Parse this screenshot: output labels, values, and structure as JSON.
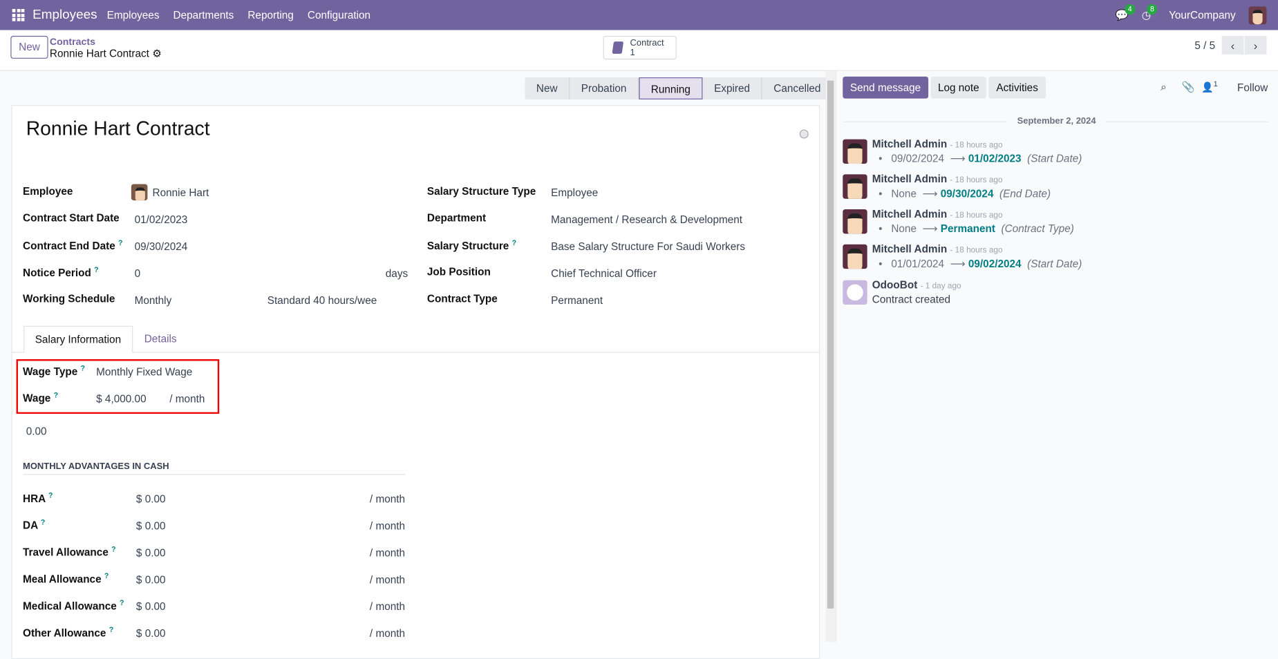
{
  "nav": {
    "app": "Employees",
    "menus": [
      "Employees",
      "Departments",
      "Reporting",
      "Configuration"
    ],
    "messages_count": "4",
    "activities_count": "8",
    "company": "YourCompany"
  },
  "control": {
    "new_label": "New",
    "breadcrumb_parent": "Contracts",
    "breadcrumb_current": "Ronnie Hart Contract",
    "smart_label": "Contract",
    "smart_count": "1",
    "pager": "5 / 5"
  },
  "statusbar": {
    "stages": [
      "New",
      "Probation",
      "Running",
      "Expired",
      "Cancelled"
    ],
    "active": "Running"
  },
  "form": {
    "title": "Ronnie Hart Contract",
    "left_fields": [
      {
        "label": "Employee",
        "value": "Ronnie Hart",
        "help": ""
      },
      {
        "label": "Contract Start Date",
        "value": "01/02/2023",
        "help": ""
      },
      {
        "label": "Contract End Date",
        "value": "09/30/2024",
        "help": "?"
      },
      {
        "label": "Notice Period",
        "value": "0",
        "help": "?",
        "suffix": "days"
      },
      {
        "label": "Working Schedule",
        "value": "Monthly",
        "help": "",
        "extra": "Standard 40 hours/wee"
      }
    ],
    "right_fields": [
      {
        "label": "Salary Structure Type",
        "value": "Employee",
        "help": ""
      },
      {
        "label": "Department",
        "value": "Management / Research & Development",
        "help": ""
      },
      {
        "label": "Salary Structure",
        "value": "Base Salary Structure For Saudi Workers",
        "help": "?"
      },
      {
        "label": "Job Position",
        "value": "Chief Technical Officer",
        "help": ""
      },
      {
        "label": "Contract Type",
        "value": "Permanent",
        "help": ""
      }
    ],
    "tabs": [
      "Salary Information",
      "Details"
    ],
    "wage_type": {
      "label": "Wage Type",
      "help": "?",
      "value": "Monthly Fixed Wage"
    },
    "wage": {
      "label": "Wage",
      "help": "?",
      "value": "$ 4,000.00",
      "unit": "/ month"
    },
    "extra_amount": "0.00",
    "section_title": "MONTHLY ADVANTAGES IN CASH",
    "advantages": [
      {
        "label": "HRA",
        "value": "$ 0.00",
        "unit": "/ month"
      },
      {
        "label": "DA",
        "value": "$ 0.00",
        "unit": "/ month"
      },
      {
        "label": "Travel Allowance",
        "value": "$ 0.00",
        "unit": "/ month"
      },
      {
        "label": "Meal Allowance",
        "value": "$ 0.00",
        "unit": "/ month"
      },
      {
        "label": "Medical Allowance",
        "value": "$ 0.00",
        "unit": "/ month"
      },
      {
        "label": "Other Allowance",
        "value": "$ 0.00",
        "unit": "/ month"
      }
    ]
  },
  "chatter": {
    "send": "Send message",
    "log": "Log note",
    "activities": "Activities",
    "followers": "1",
    "follow": "Follow",
    "date": "September 2, 2024",
    "messages": [
      {
        "author": "Mitchell Admin",
        "time": "- 18 hours ago",
        "old": "09/02/2024",
        "new": "01/02/2023",
        "field": "(Start Date)"
      },
      {
        "author": "Mitchell Admin",
        "time": "- 18 hours ago",
        "old": "None",
        "new": "09/30/2024",
        "field": "(End Date)"
      },
      {
        "author": "Mitchell Admin",
        "time": "- 18 hours ago",
        "old": "None",
        "new": "Permanent",
        "field": "(Contract Type)"
      },
      {
        "author": "Mitchell Admin",
        "time": "- 18 hours ago",
        "old": "01/01/2024",
        "new": "09/02/2024",
        "field": "(Start Date)"
      }
    ],
    "bot": {
      "author": "OdooBot",
      "time": "- 1 day ago",
      "body": "Contract created"
    }
  },
  "colors": {
    "brand": "#71639e",
    "link": "#017e84",
    "highlight": "#ee0000"
  }
}
